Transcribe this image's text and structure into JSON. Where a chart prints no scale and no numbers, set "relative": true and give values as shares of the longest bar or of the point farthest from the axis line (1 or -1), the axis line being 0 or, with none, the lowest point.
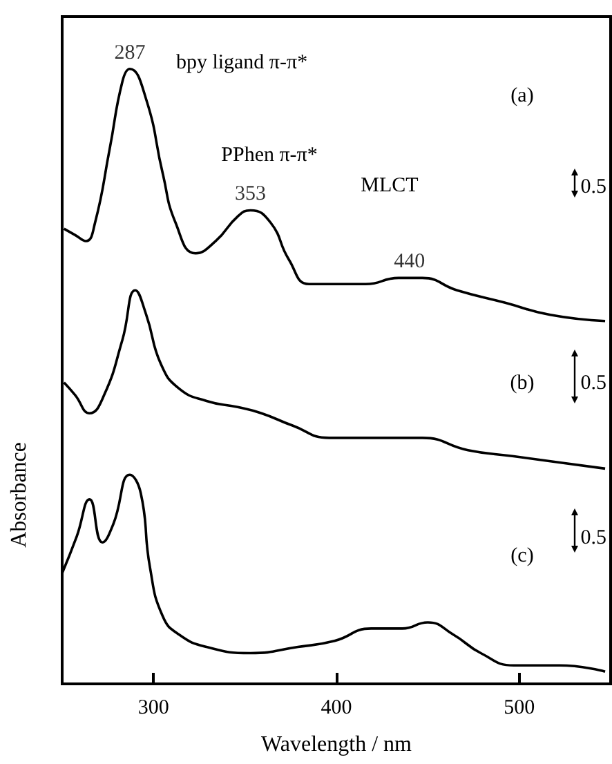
{
  "chart_data": {
    "type": "line",
    "relative": true,
    "xlabel": "Wavelength / nm",
    "ylabel": "Absorbance",
    "xlim": [
      250,
      550
    ],
    "xticks": [
      300,
      400,
      500
    ],
    "series": [
      {
        "color": "#000000",
        "x": [
          251,
          257,
          263,
          268,
          276,
          283,
          287,
          296,
          305,
          312,
          323,
          334,
          346,
          353,
          364,
          374,
          385,
          399,
          416,
          434,
          447,
          466,
          492,
          517,
          547
        ],
        "values": [
          0.74,
          0.73,
          0.72,
          0.75,
          0.87,
          0.98,
          1,
          0.95,
          0.83,
          0.75,
          0.7,
          0.72,
          0.76,
          0.77,
          0.75,
          0.69,
          0.65,
          0.65,
          0.65,
          0.66,
          0.66,
          0.64,
          0.62,
          0.6,
          0.59
        ]
      },
      {
        "color": "#000000",
        "x": [
          251,
          257,
          265,
          273,
          283,
          290,
          296,
          304,
          314,
          329,
          346,
          359,
          376,
          396,
          421,
          447,
          472,
          497,
          522,
          547
        ],
        "values": [
          0.49,
          0.47,
          0.44,
          0.47,
          0.56,
          0.64,
          0.6,
          0.52,
          0.48,
          0.46,
          0.45,
          0.44,
          0.42,
          0.4,
          0.4,
          0.4,
          0.38,
          0.37,
          0.36,
          0.35
        ]
      },
      {
        "color": "#000000",
        "x": [
          250,
          258,
          265,
          272,
          278,
          287,
          293,
          298,
          305,
          314,
          329,
          353,
          379,
          399,
          419,
          436,
          450,
          464,
          479,
          497,
          522,
          547
        ],
        "values": [
          0.18,
          0.24,
          0.3,
          0.23,
          0.26,
          0.34,
          0.31,
          0.19,
          0.11,
          0.08,
          0.06,
          0.05,
          0.06,
          0.07,
          0.09,
          0.09,
          0.1,
          0.08,
          0.05,
          0.03,
          0.03,
          0.02
        ]
      }
    ],
    "annotations": [
      {
        "text": "287",
        "x": 287,
        "y": 1
      },
      {
        "text": "353",
        "x": 353,
        "y": 0.77
      },
      {
        "text": "440",
        "x": 440,
        "y": 0.66
      },
      "bpy ligand π-π*",
      "PPhen π-π*",
      "MLCT",
      "(a)",
      "(b)",
      "(c)",
      "0.5",
      "0.5",
      "0.5"
    ]
  }
}
